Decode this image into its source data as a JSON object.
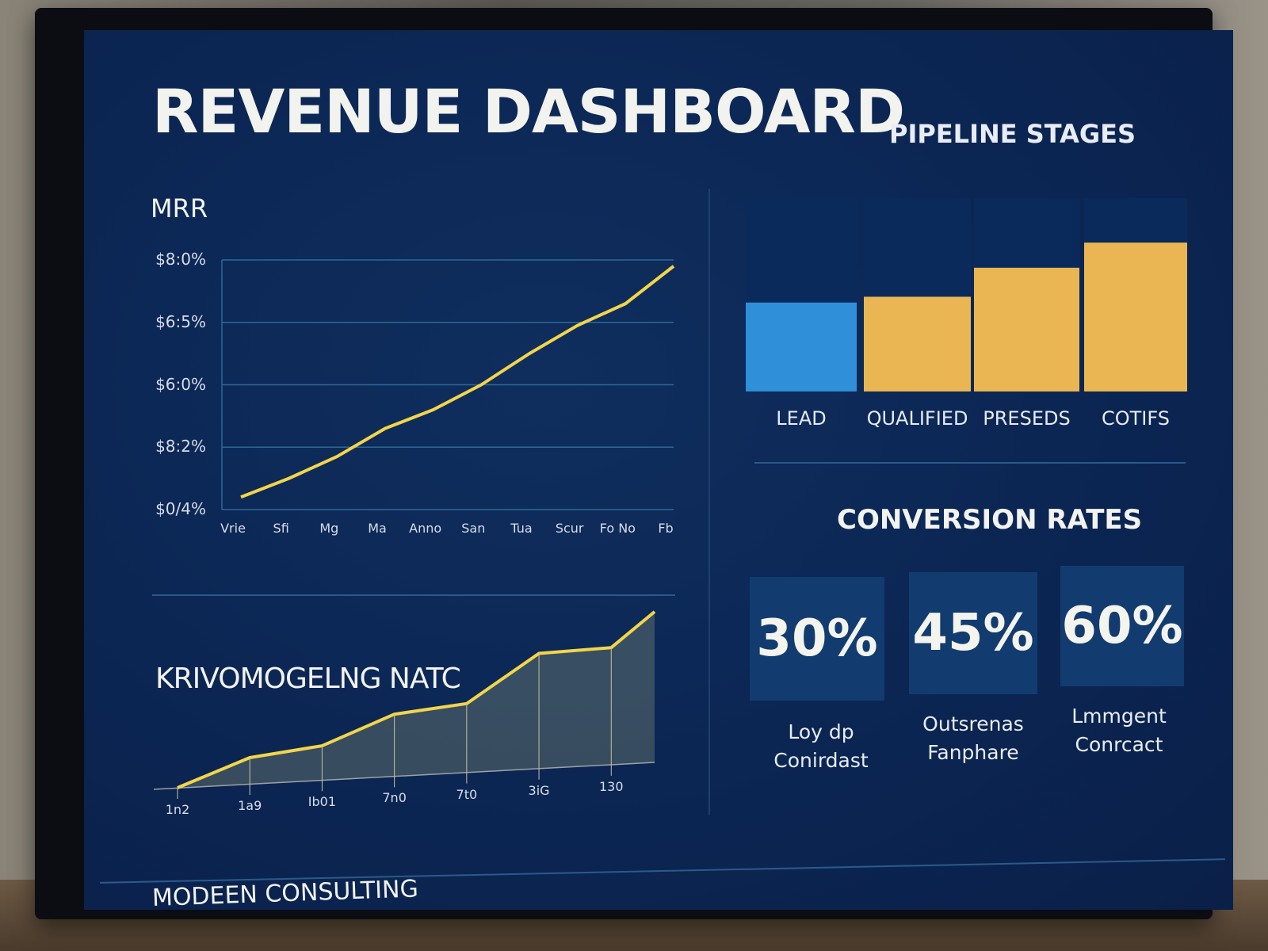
{
  "header": {
    "title": "REVENUE DASHBOARD",
    "brand_logo_text": "KRIVOMOGELNG NATC",
    "footer": "MODEEN CONSULTING"
  },
  "colors": {
    "background": "#0b2552",
    "accent_line": "#f2d54a",
    "bar_lead": "#2f8fd8",
    "bar_other": "#e9b653",
    "bar_track": "#0a2a5c",
    "card": "#123c70"
  },
  "chart_data": [
    {
      "type": "line",
      "title": "MRR",
      "y_ticks": [
        {
          "value": 0,
          "label": "$0/4%"
        },
        {
          "value": 1,
          "label": "$8:2%"
        },
        {
          "value": 2,
          "label": "$6:0%"
        },
        {
          "value": 3,
          "label": "$6:5%"
        },
        {
          "value": 4,
          "label": "$8:0%"
        }
      ],
      "ylim": [
        0,
        4
      ],
      "categories": [
        "Vrie",
        "Sfi",
        "Mg",
        "Ma",
        "Anno",
        "San",
        "Tua",
        "Scur",
        "Fo No",
        "Fb"
      ],
      "values": [
        0.2,
        0.5,
        0.85,
        1.3,
        1.6,
        2.0,
        2.5,
        2.95,
        3.3,
        3.9
      ],
      "grid": true,
      "color": "#f2d54a"
    },
    {
      "type": "bar",
      "title": "PIPELINE STAGES",
      "categories": [
        "LEAD",
        "QUALIFIED",
        "PRESEDS",
        "COTIFS"
      ],
      "values": [
        0.46,
        0.49,
        0.64,
        0.77
      ],
      "ylim": [
        0,
        1
      ],
      "colors": [
        "#2f8fd8",
        "#e9b653",
        "#e9b653",
        "#e9b653"
      ]
    },
    {
      "type": "area",
      "categories": [
        "1n2",
        "1a9",
        "Ib01",
        "7n0",
        "7t0",
        "3iG",
        "130"
      ],
      "x": [
        0,
        1,
        2,
        3,
        4,
        5,
        6,
        6.6
      ],
      "values": [
        0.0,
        0.15,
        0.2,
        0.37,
        0.42,
        0.72,
        0.75,
        0.98
      ],
      "ylim": [
        0,
        1
      ],
      "color": "#f2d54a"
    }
  ],
  "conversion": {
    "title": "CONVERSION RATES",
    "cards": [
      {
        "value": "30%",
        "label": "Loy dp Conirdast"
      },
      {
        "value": "45%",
        "label": "Outsrenas Fanphare"
      },
      {
        "value": "60%",
        "label": "Lmmgent Conrcact"
      }
    ]
  }
}
